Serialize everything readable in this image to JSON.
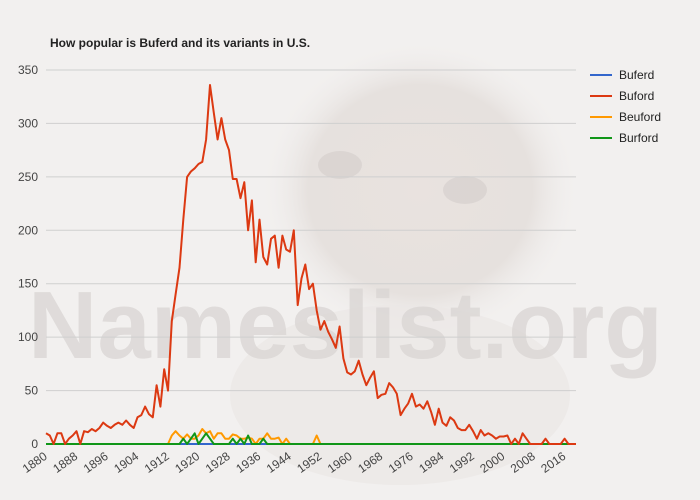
{
  "watermark": "Nameslist.org",
  "colors": {
    "Buferd": "#3366cc",
    "Buford": "#dc3912",
    "Beuford": "#ff9900",
    "Burford": "#109618"
  },
  "chart_data": {
    "type": "line",
    "title": "How popular is Buferd and its variants in U.S.",
    "xlabel": "",
    "ylabel": "",
    "xlim": [
      1880,
      2019
    ],
    "ylim": [
      0,
      350
    ],
    "yticks": [
      0,
      50,
      100,
      150,
      200,
      250,
      300,
      350
    ],
    "xticks": [
      1880,
      1888,
      1896,
      1904,
      1912,
      1920,
      1928,
      1936,
      1944,
      1952,
      1960,
      1968,
      1976,
      1984,
      1992,
      2000,
      2008,
      2016
    ],
    "grid": true,
    "legend": "right",
    "series": [
      {
        "name": "Buferd",
        "x": [
          1880,
          2019
        ],
        "y": [
          0,
          0
        ]
      },
      {
        "name": "Buford",
        "x": [
          1880,
          1881,
          1882,
          1883,
          1884,
          1885,
          1886,
          1887,
          1888,
          1889,
          1890,
          1891,
          1892,
          1893,
          1894,
          1895,
          1896,
          1897,
          1898,
          1899,
          1900,
          1901,
          1902,
          1903,
          1904,
          1905,
          1906,
          1907,
          1908,
          1909,
          1910,
          1911,
          1912,
          1913,
          1914,
          1915,
          1916,
          1917,
          1918,
          1919,
          1920,
          1921,
          1922,
          1923,
          1924,
          1925,
          1926,
          1927,
          1928,
          1929,
          1930,
          1931,
          1932,
          1933,
          1934,
          1935,
          1936,
          1937,
          1938,
          1939,
          1940,
          1941,
          1942,
          1943,
          1944,
          1945,
          1946,
          1947,
          1948,
          1949,
          1950,
          1951,
          1952,
          1953,
          1954,
          1955,
          1956,
          1957,
          1958,
          1959,
          1960,
          1961,
          1962,
          1963,
          1964,
          1965,
          1966,
          1967,
          1968,
          1969,
          1970,
          1971,
          1972,
          1973,
          1974,
          1975,
          1976,
          1977,
          1978,
          1979,
          1980,
          1981,
          1982,
          1983,
          1984,
          1985,
          1986,
          1987,
          1988,
          1989,
          1990,
          1991,
          1992,
          1993,
          1994,
          1995,
          1996,
          1997,
          1998,
          1999,
          2000,
          2001,
          2002,
          2003,
          2004,
          2005,
          2006,
          2007,
          2008,
          2009,
          2010,
          2011,
          2012,
          2013,
          2014,
          2015,
          2016,
          2017,
          2018,
          2019
        ],
        "y": [
          10,
          8,
          0,
          10,
          10,
          0,
          5,
          8,
          12,
          0,
          12,
          11,
          14,
          12,
          15,
          20,
          17,
          15,
          18,
          20,
          18,
          22,
          18,
          15,
          25,
          27,
          35,
          28,
          25,
          55,
          35,
          70,
          50,
          115,
          140,
          165,
          210,
          250,
          255,
          258,
          262,
          264,
          285,
          336,
          310,
          285,
          305,
          285,
          275,
          248,
          248,
          230,
          245,
          200,
          228,
          170,
          210,
          175,
          168,
          192,
          195,
          165,
          195,
          182,
          180,
          200,
          130,
          155,
          168,
          145,
          150,
          125,
          107,
          115,
          105,
          98,
          90,
          110,
          80,
          67,
          65,
          68,
          78,
          65,
          55,
          62,
          68,
          43,
          46,
          47,
          57,
          53,
          47,
          27,
          33,
          38,
          47,
          35,
          37,
          33,
          40,
          30,
          18,
          33,
          20,
          17,
          25,
          22,
          15,
          13,
          13,
          18,
          12,
          5,
          13,
          8,
          10,
          8,
          5,
          7,
          7,
          8,
          0,
          5,
          0,
          10,
          5,
          0,
          0,
          0,
          0,
          5,
          0,
          0,
          0,
          0,
          5,
          0,
          0,
          0
        ]
      },
      {
        "name": "Beuford",
        "x": [
          1880,
          1911,
          1912,
          1913,
          1914,
          1915,
          1916,
          1917,
          1918,
          1919,
          1920,
          1921,
          1922,
          1923,
          1924,
          1925,
          1926,
          1927,
          1928,
          1929,
          1930,
          1931,
          1932,
          1933,
          1934,
          1935,
          1936,
          1937,
          1938,
          1939,
          1940,
          1941,
          1942,
          1943,
          1944,
          1945,
          1946,
          1947,
          1948,
          1949,
          1950,
          1951,
          1952,
          1953,
          1954,
          2019
        ],
        "y": [
          0,
          0,
          0,
          8,
          12,
          8,
          5,
          9,
          5,
          5,
          8,
          14,
          10,
          12,
          5,
          10,
          10,
          5,
          5,
          9,
          8,
          5,
          5,
          6,
          5,
          0,
          5,
          5,
          10,
          5,
          5,
          6,
          0,
          5,
          0,
          0,
          0,
          0,
          0,
          0,
          0,
          8,
          0,
          0,
          0,
          0
        ]
      },
      {
        "name": "Burford",
        "x": [
          1880,
          1915,
          1916,
          1917,
          1918,
          1919,
          1920,
          1921,
          1922,
          1923,
          1924,
          1925,
          1926,
          1927,
          1928,
          1929,
          1930,
          1931,
          1932,
          1933,
          1934,
          1935,
          1936,
          1937,
          1938,
          2019
        ],
        "y": [
          0,
          0,
          5,
          0,
          5,
          10,
          0,
          5,
          10,
          5,
          0,
          0,
          0,
          0,
          0,
          5,
          0,
          5,
          0,
          8,
          0,
          0,
          0,
          5,
          0,
          0
        ]
      }
    ]
  }
}
